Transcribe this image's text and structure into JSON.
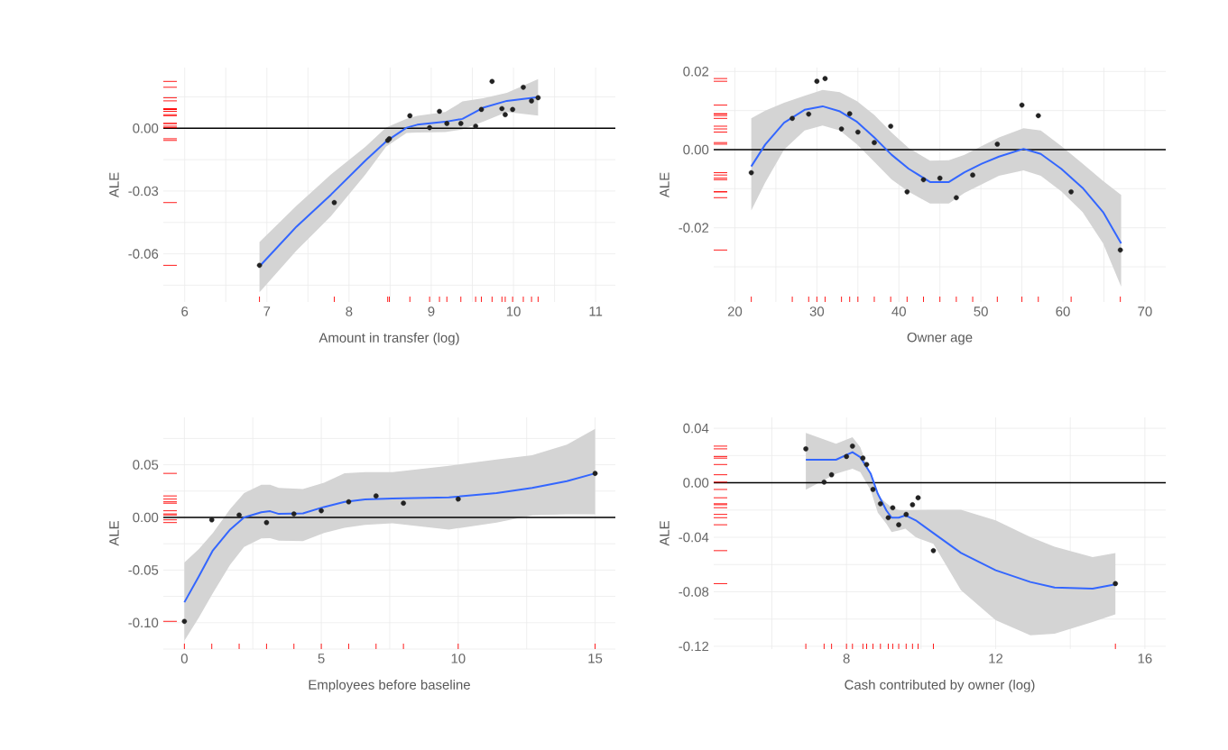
{
  "chart_data": [
    {
      "type": "scatter",
      "xlabel": "Amount in transfer (log)",
      "ylabel": "ALE",
      "xlim": [
        5.74,
        11.24
      ],
      "ylim": [
        -0.083,
        0.029
      ],
      "xticks": [
        6,
        {
          "value": 6.5,
          "label": null
        },
        7,
        {
          "value": 7.5,
          "label": null
        },
        8,
        {
          "value": 8.5,
          "label": null
        },
        9,
        {
          "value": 9.5,
          "label": null
        },
        10,
        {
          "value": 10.5,
          "label": null
        },
        11
      ],
      "yticks": [
        {
          "value": -0.075,
          "label": null
        },
        -0.06,
        {
          "value": -0.045,
          "label": null
        },
        -0.03,
        {
          "value": -0.015,
          "label": null
        },
        {
          "value": 0,
          "label": "0.00"
        },
        {
          "value": 0.015,
          "label": null
        }
      ],
      "grid": true,
      "ref_lines": [
        {
          "axis": "y",
          "value": 0,
          "color": "#000000"
        }
      ],
      "series": [
        {
          "type": "line",
          "color": "#3366ff",
          "x": [
            6.91,
            7.36,
            7.78,
            8.2,
            8.45,
            8.7,
            8.83,
            9.17,
            9.38,
            9.63,
            9.92,
            10.3
          ],
          "values": [
            -0.066,
            -0.047,
            -0.0317,
            -0.0154,
            -0.0063,
            0.0003,
            0.0017,
            0.0031,
            0.0045,
            0.0098,
            0.0131,
            0.0149
          ],
          "upper": [
            -0.0544,
            -0.037,
            -0.022,
            -0.0088,
            0.0003,
            0.0045,
            0.006,
            0.0078,
            0.0128,
            0.0144,
            0.0169,
            0.0235
          ],
          "lower": [
            -0.0784,
            -0.0585,
            -0.042,
            -0.022,
            -0.0088,
            -0.0022,
            -0.002,
            -0.0018,
            -0.0005,
            0.0031,
            0.0078,
            0.0061
          ]
        },
        {
          "color": "#222222",
          "x": [
            6.91,
            7.82,
            8.47,
            8.49,
            8.74,
            8.98,
            9.1,
            9.19,
            9.36,
            9.54,
            9.61,
            9.74,
            9.86,
            9.9,
            9.99,
            10.12,
            10.22,
            10.3
          ],
          "values": [
            -0.0655,
            -0.0355,
            -0.0058,
            -0.005,
            0.006,
            0.0003,
            0.0081,
            0.0023,
            0.0023,
            0.001,
            0.009,
            0.0224,
            0.0094,
            0.0065,
            0.009,
            0.0196,
            0.0131,
            0.0146
          ]
        }
      ]
    },
    {
      "type": "scatter",
      "xlabel": "Owner age",
      "ylabel": "ALE",
      "xlim": [
        17.42,
        72.54
      ],
      "ylim": [
        -0.039,
        0.021
      ],
      "xticks": [
        20,
        {
          "value": 25,
          "label": null
        },
        30,
        {
          "value": 35,
          "label": null
        },
        40,
        {
          "value": 45,
          "label": null
        },
        50,
        {
          "value": 55,
          "label": null
        },
        60,
        {
          "value": 65,
          "label": null
        },
        70
      ],
      "yticks": [
        {
          "value": -0.03,
          "label": null
        },
        -0.02,
        {
          "value": -0.01,
          "label": null
        },
        {
          "value": 0,
          "label": "0.00"
        },
        {
          "value": 0.01,
          "label": null
        },
        0.02
      ],
      "grid": true,
      "ref_lines": [
        {
          "axis": "y",
          "value": 0,
          "color": "#000000"
        }
      ],
      "series": [
        {
          "type": "line",
          "color": "#3366ff",
          "x": [
            22,
            23.7,
            26,
            28.5,
            30.7,
            32.8,
            34.9,
            37,
            39.1,
            41.2,
            43.8,
            46.1,
            48,
            50.1,
            52.2,
            55.2,
            57.3,
            59.8,
            62.4,
            64.9,
            67.1
          ],
          "values": [
            -0.0043,
            0.0013,
            0.0069,
            0.0102,
            0.0111,
            0.0098,
            0.0071,
            0.0031,
            -0.0013,
            -0.0049,
            -0.0083,
            -0.0083,
            -0.0058,
            -0.0036,
            -0.0018,
            0.0002,
            -0.0011,
            -0.0049,
            -0.0098,
            -0.016,
            -0.024
          ],
          "upper": [
            0.008,
            0.01,
            0.012,
            0.0138,
            0.0153,
            0.0147,
            0.0124,
            0.0089,
            0.0044,
            0.0004,
            -0.0028,
            -0.0027,
            -0.0013,
            0.0009,
            0.0031,
            0.0055,
            0.0049,
            0.0009,
            -0.0036,
            -0.008,
            -0.0116
          ],
          "lower": [
            -0.0156,
            -0.0084,
            0.0,
            0.0049,
            0.0062,
            0.0049,
            0.0013,
            -0.0031,
            -0.0076,
            -0.0108,
            -0.0138,
            -0.0138,
            -0.0111,
            -0.0089,
            -0.0067,
            -0.0053,
            -0.0067,
            -0.0107,
            -0.016,
            -0.024,
            -0.0351
          ]
        },
        {
          "color": "#222222",
          "x": [
            22,
            27,
            29,
            30,
            31,
            33,
            34,
            35,
            37,
            39,
            41,
            43,
            45,
            47,
            49,
            52,
            55,
            57,
            61,
            67
          ],
          "values": [
            -0.0059,
            0.008,
            0.0091,
            0.0175,
            0.0182,
            0.0053,
            0.0092,
            0.0045,
            0.0018,
            0.006,
            -0.0108,
            -0.0077,
            -0.0073,
            -0.0123,
            -0.0065,
            0.0014,
            0.0114,
            0.0087,
            -0.0108,
            -0.0257
          ]
        }
      ]
    },
    {
      "type": "scatter",
      "xlabel": "Employees before baseline",
      "ylabel": "ALE",
      "xlim": [
        -0.77,
        15.74
      ],
      "ylim": [
        -0.125,
        0.095
      ],
      "xticks": [
        0,
        {
          "value": 2.5,
          "label": null
        },
        5,
        {
          "value": 7.5,
          "label": null
        },
        10,
        {
          "value": 12.5,
          "label": null
        },
        15
      ],
      "yticks": [
        {
          "value": -0.125,
          "label": null
        },
        {
          "value": -0.1,
          "label": "-0.10"
        },
        {
          "value": -0.075,
          "label": null
        },
        -0.05,
        {
          "value": -0.025,
          "label": null
        },
        {
          "value": 0,
          "label": "0.00"
        },
        {
          "value": 0.025,
          "label": null
        },
        0.05,
        {
          "value": 0.075,
          "label": null
        }
      ],
      "grid": true,
      "ref_lines": [
        {
          "axis": "y",
          "value": 0,
          "color": "#000000"
        }
      ],
      "series": [
        {
          "type": "line",
          "color": "#3366ff",
          "x": [
            0,
            0.53,
            1.04,
            1.67,
            2.18,
            2.81,
            3.13,
            3.45,
            4.33,
            5.1,
            5.85,
            6.6,
            7.6,
            9.66,
            11.4,
            12.7,
            13.97,
            15
          ],
          "values": [
            -0.0806,
            -0.0559,
            -0.0313,
            -0.0115,
            0.0,
            0.0049,
            0.0059,
            0.0033,
            0.0039,
            0.0099,
            0.0148,
            0.0171,
            0.018,
            0.019,
            0.023,
            0.028,
            0.0345,
            0.0418
          ],
          "upper": [
            -0.0428,
            -0.03,
            -0.0148,
            0.008,
            0.023,
            0.031,
            0.031,
            0.028,
            0.027,
            0.033,
            0.042,
            0.043,
            0.043,
            0.049,
            0.055,
            0.059,
            0.069,
            0.084
          ],
          "lower": [
            -0.117,
            -0.095,
            -0.072,
            -0.045,
            -0.028,
            -0.02,
            -0.0197,
            -0.022,
            -0.0224,
            -0.0148,
            -0.0099,
            -0.007,
            -0.0056,
            -0.0115,
            -0.0049,
            0.002,
            0.003,
            0.003
          ]
        },
        {
          "color": "#222222",
          "x": [
            0,
            1,
            2,
            3,
            4,
            5,
            6,
            7,
            8,
            10,
            15
          ],
          "values": [
            -0.0987,
            -0.0023,
            0.0023,
            -0.0049,
            0.0033,
            0.0063,
            0.0148,
            0.0204,
            0.0135,
            0.0174,
            0.0418
          ]
        }
      ]
    },
    {
      "type": "scatter",
      "xlabel": "Cash contributed by owner (log)",
      "ylabel": "ALE",
      "xlim": [
        4.44,
        16.56
      ],
      "ylim": [
        -0.122,
        0.048
      ],
      "xticks": [
        {
          "value": 6,
          "label": null
        },
        8,
        {
          "value": 10,
          "label": null
        },
        12,
        {
          "value": 14,
          "label": null
        },
        16
      ],
      "yticks": [
        -0.12,
        {
          "value": -0.1,
          "label": null
        },
        -0.08,
        {
          "value": -0.06,
          "label": null
        },
        -0.04,
        {
          "value": -0.02,
          "label": null
        },
        {
          "value": 0,
          "label": "0.00"
        },
        {
          "value": 0.02,
          "label": null
        },
        0.04
      ],
      "grid": true,
      "ref_lines": [
        {
          "axis": "y",
          "value": 0,
          "color": "#000000"
        }
      ],
      "series": [
        {
          "type": "line",
          "color": "#3366ff",
          "x": [
            6.91,
            7.72,
            8.16,
            8.37,
            8.65,
            8.84,
            9.07,
            9.21,
            9.4,
            9.58,
            9.86,
            10.33,
            11.07,
            12,
            12.93,
            13.58,
            14.6,
            15.21
          ],
          "values": [
            0.0169,
            0.0169,
            0.0225,
            0.0188,
            0.0066,
            -0.0081,
            -0.0203,
            -0.0256,
            -0.0256,
            -0.0239,
            -0.0276,
            -0.0369,
            -0.0515,
            -0.0642,
            -0.0728,
            -0.0769,
            -0.0777,
            -0.0745
          ],
          "upper": [
            0.0366,
            0.0286,
            0.0335,
            0.0261,
            0.0054,
            -0.0093,
            -0.015,
            -0.018,
            -0.02,
            -0.0203,
            -0.02,
            -0.0198,
            -0.0198,
            -0.0276,
            -0.0398,
            -0.047,
            -0.0545,
            -0.0515
          ],
          "lower": [
            -0.0051,
            0.0066,
            0.0103,
            0.0078,
            -0.0056,
            -0.022,
            -0.03,
            -0.0361,
            -0.035,
            -0.0337,
            -0.04,
            -0.0447,
            -0.0789,
            -0.1009,
            -0.1119,
            -0.1107,
            -0.1021,
            -0.0965
          ]
        },
        {
          "color": "#222222",
          "x": [
            6.91,
            7.4,
            7.6,
            8.0,
            8.16,
            8.44,
            8.54,
            8.71,
            8.91,
            9.12,
            9.24,
            9.4,
            9.6,
            9.77,
            9.92,
            10.33,
            15.21
          ],
          "values": [
            0.0249,
            0.0005,
            0.0059,
            0.0193,
            0.0269,
            0.0181,
            0.0134,
            -0.0049,
            -0.0154,
            -0.0256,
            -0.0183,
            -0.0308,
            -0.0232,
            -0.0161,
            -0.011,
            -0.0498,
            -0.074
          ]
        }
      ]
    }
  ]
}
